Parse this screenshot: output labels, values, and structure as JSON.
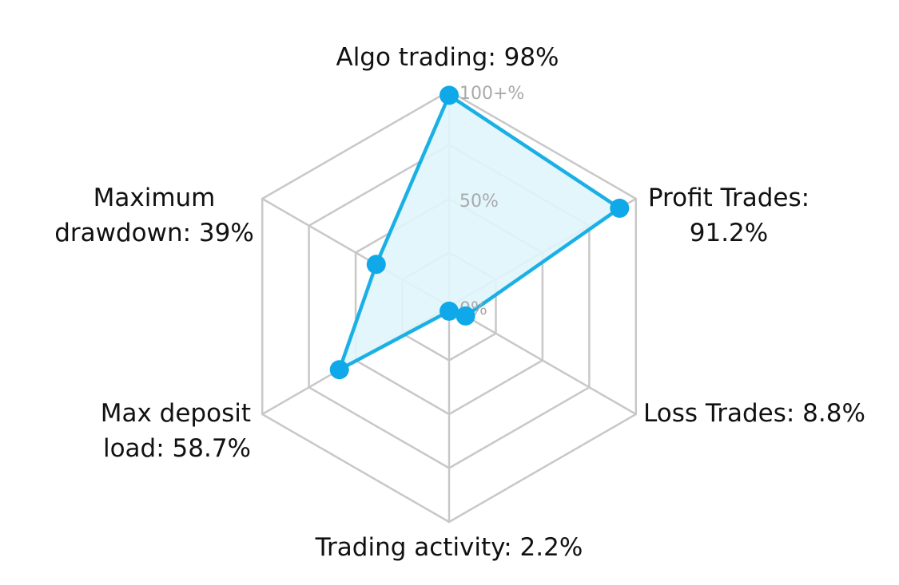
{
  "chart_data": {
    "type": "radar",
    "max": 100,
    "ring_levels": [
      0,
      25,
      50,
      75,
      100
    ],
    "ring_labels": [
      {
        "value": 0,
        "text": "0%"
      },
      {
        "value": 50,
        "text": "50%"
      },
      {
        "value": 100,
        "text": "100+%"
      }
    ],
    "axes": [
      {
        "name": "Algo trading",
        "value": 98,
        "label_lines": [
          "Algo trading: 98%"
        ],
        "anchor": "middle"
      },
      {
        "name": "Profit Trades",
        "value": 91.2,
        "label_lines": [
          "Profit Trades:",
          "91.2%"
        ],
        "anchor": "middle"
      },
      {
        "name": "Loss Trades",
        "value": 8.8,
        "label_lines": [
          "Loss Trades: 8.8%"
        ],
        "anchor": "start"
      },
      {
        "name": "Trading activity",
        "value": 2.2,
        "label_lines": [
          "Trading activity: 2.2%"
        ],
        "anchor": "middle"
      },
      {
        "name": "Max deposit load",
        "value": 58.7,
        "label_lines": [
          "Max deposit",
          "load: 58.7%"
        ],
        "anchor": "end"
      },
      {
        "name": "Maximum drawdown",
        "value": 39,
        "label_lines": [
          "Maximum",
          "drawdown: 39%"
        ],
        "anchor": "middle"
      }
    ],
    "colors": {
      "line": "#1ab0e6",
      "marker": "#0fa9ea",
      "fill": "#e0f5fb",
      "grid": "#c8c8c8",
      "ring_label": "#a9a9a9"
    },
    "grid": true,
    "legend": "none"
  }
}
